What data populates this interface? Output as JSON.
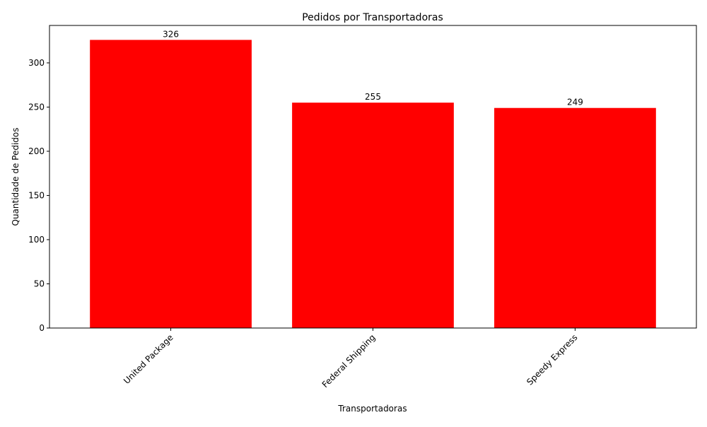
{
  "chart_data": {
    "type": "bar",
    "title": "Pedidos por Transportadoras",
    "xlabel": "Transportadoras",
    "ylabel": "Quantidade de Pedidos",
    "categories": [
      "United Package",
      "Federal Shipping",
      "Speedy Express"
    ],
    "values": [
      326,
      255,
      249
    ],
    "data_labels": [
      "326",
      "255",
      "249"
    ],
    "ylim": [
      0,
      342.35
    ],
    "yticks": [
      0,
      50,
      100,
      150,
      200,
      250,
      300
    ],
    "grid": false,
    "legend": "none",
    "bar_color": "#ff0000"
  }
}
